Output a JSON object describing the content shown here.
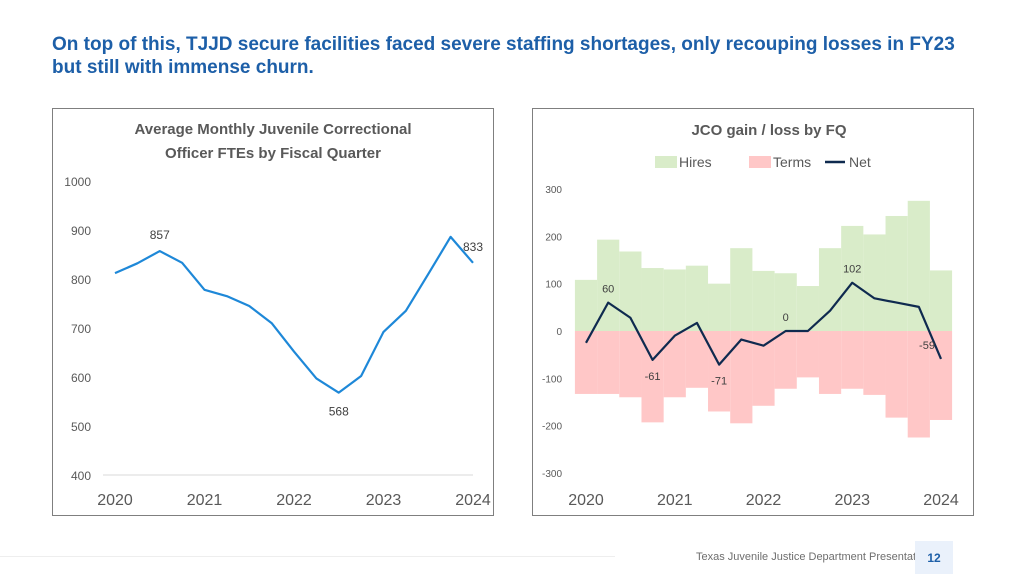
{
  "slide": {
    "title_line1": "On top of this, TJJD secure facilities faced severe staffing shortages, only recouping losses in FY23",
    "title_line2": "but still with immense churn.",
    "footer": "Texas Juvenile Justice Department Presentation",
    "page_number": "12"
  },
  "colors": {
    "title": "#1d5fa8",
    "line_left": "#1e88d8",
    "hires": "#d9ecc9",
    "terms": "#ffc7c7",
    "net": "#0f2a4f"
  },
  "chart_data": [
    {
      "type": "line",
      "title_lines": [
        "Average Monthly Juvenile Correctional",
        "Officer FTEs by Fiscal Quarter"
      ],
      "x_tick_labels": [
        "2020",
        "2021",
        "2022",
        "2023",
        "2024"
      ],
      "x_tick_positions": [
        0,
        4,
        8,
        12,
        16
      ],
      "y_tick_labels": [
        "400",
        "500",
        "600",
        "700",
        "800",
        "900",
        "1000"
      ],
      "ylim": [
        400,
        1000
      ],
      "xlim": [
        0,
        16
      ],
      "series": [
        {
          "name": "FTEs",
          "values": [
            812,
            832,
            857,
            833,
            778,
            765,
            745,
            710,
            652,
            597,
            568,
            602,
            692,
            735,
            810,
            886,
            833
          ]
        }
      ],
      "data_labels": [
        {
          "index": 2,
          "text": "857",
          "position": "above"
        },
        {
          "index": 10,
          "text": "568",
          "position": "below"
        },
        {
          "index": 16,
          "text": "833",
          "position": "above"
        }
      ]
    },
    {
      "type": "area",
      "title": "JCO gain / loss by FQ",
      "legend": [
        {
          "label": "Hires",
          "kind": "area",
          "color": "#d9ecc9"
        },
        {
          "label": "Terms",
          "kind": "area",
          "color": "#ffc7c7"
        },
        {
          "label": "Net",
          "kind": "line",
          "color": "#0f2a4f"
        }
      ],
      "x_tick_labels": [
        "2020",
        "2021",
        "2022",
        "2023",
        "2024"
      ],
      "x_tick_positions": [
        0,
        4,
        8,
        12,
        16
      ],
      "y_tick_labels": [
        "300",
        "200",
        "100",
        "0",
        "-100",
        "-200",
        "-300"
      ],
      "ylim": [
        -300,
        300
      ],
      "xlim": [
        0,
        16
      ],
      "series": [
        {
          "name": "Hires",
          "values": [
            108,
            193,
            168,
            133,
            130,
            138,
            100,
            175,
            127,
            122,
            95,
            175,
            222,
            204,
            243,
            275,
            128
          ]
        },
        {
          "name": "Terms",
          "values": [
            -133,
            -133,
            -140,
            -193,
            -140,
            -120,
            -170,
            -195,
            -158,
            -122,
            -98,
            -133,
            -122,
            -135,
            -183,
            -225,
            -188
          ]
        },
        {
          "name": "Net",
          "values": [
            -25,
            60,
            28,
            -61,
            -10,
            17,
            -71,
            -18,
            -31,
            0,
            0,
            43,
            102,
            69,
            60,
            51,
            -59
          ]
        }
      ],
      "data_labels": [
        {
          "index": 1,
          "text": "60",
          "position": "above"
        },
        {
          "index": 3,
          "text": "-61",
          "position": "below"
        },
        {
          "index": 6,
          "text": "-71",
          "position": "below"
        },
        {
          "index": 9,
          "text": "0",
          "position": "above"
        },
        {
          "index": 12,
          "text": "102",
          "position": "above"
        },
        {
          "index": 16,
          "text": "-59",
          "position": "above"
        }
      ]
    }
  ]
}
